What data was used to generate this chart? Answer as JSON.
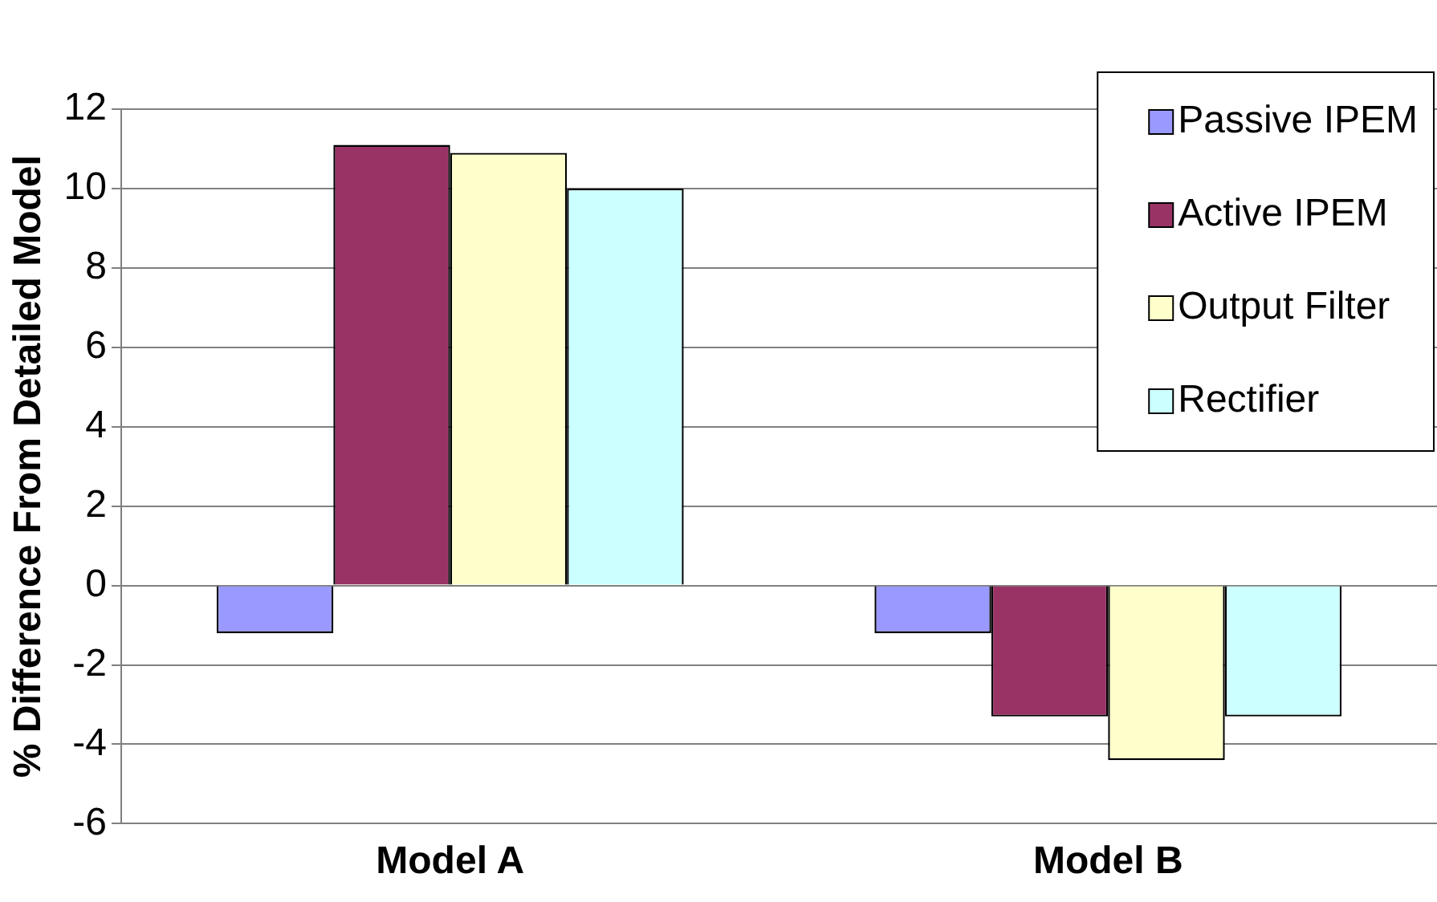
{
  "chart_data": {
    "type": "bar",
    "ylabel": "% Difference From Detailed Model",
    "categories": [
      "Model A",
      "Model B"
    ],
    "series": [
      {
        "name": "Passive IPEM",
        "color": "#9999ff",
        "values": [
          -1.2,
          -1.2
        ]
      },
      {
        "name": "Active IPEM",
        "color": "#993366",
        "values": [
          11.1,
          -3.3
        ]
      },
      {
        "name": "Output Filter",
        "color": "#ffffcc",
        "values": [
          10.9,
          -4.4
        ]
      },
      {
        "name": "Rectifier",
        "color": "#ccffff",
        "values": [
          10,
          -3.3
        ]
      }
    ],
    "ylim": [
      -6,
      12
    ],
    "yticks": [
      -6,
      -4,
      -2,
      0,
      2,
      4,
      6,
      8,
      10,
      12
    ],
    "grid": "y",
    "legend": "top right"
  }
}
